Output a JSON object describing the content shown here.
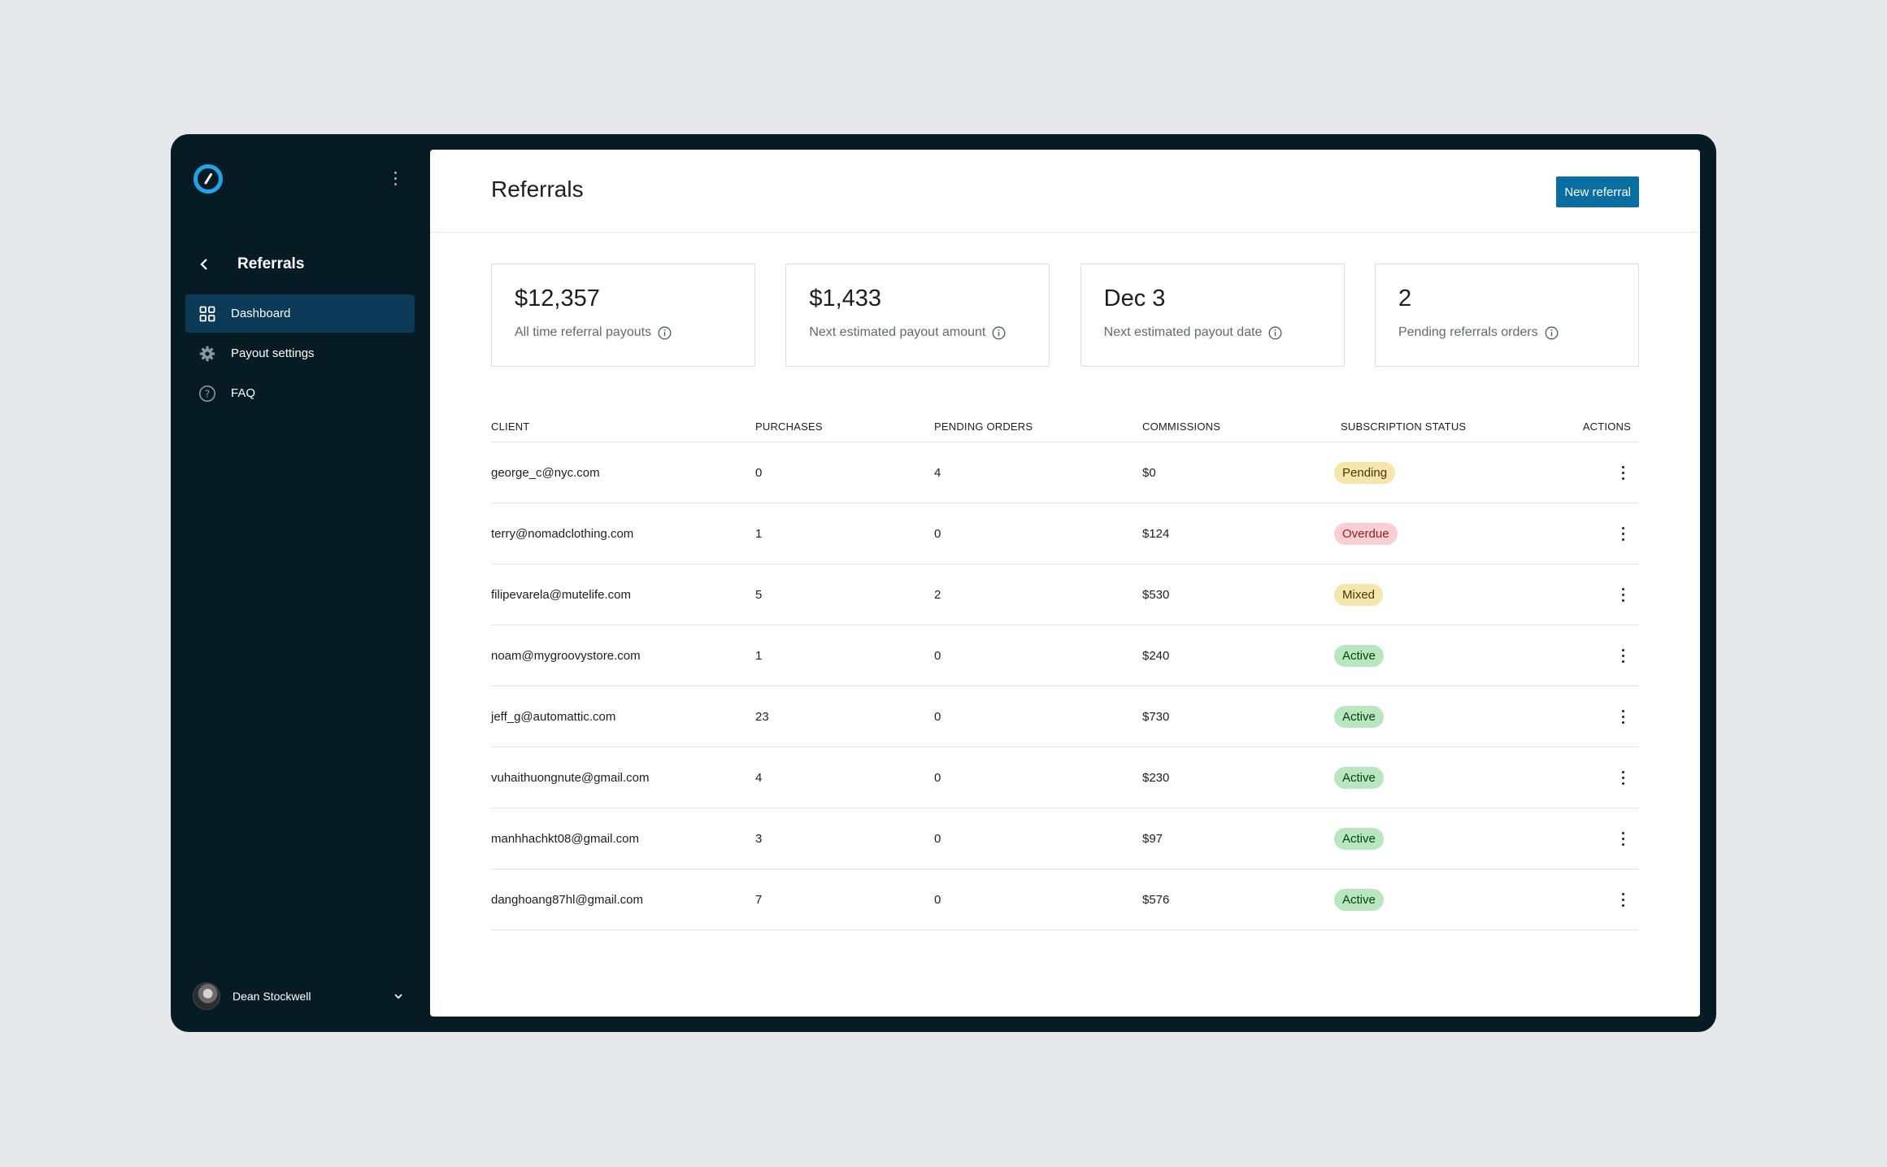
{
  "sidebar": {
    "section_title": "Referrals",
    "items": [
      {
        "label": "Dashboard",
        "icon": "grid-icon",
        "active": true
      },
      {
        "label": "Payout settings",
        "icon": "gear-icon",
        "active": false
      },
      {
        "label": "FAQ",
        "icon": "help-circle-icon",
        "active": false
      }
    ],
    "user": {
      "name": "Dean Stockwell"
    }
  },
  "header": {
    "title": "Referrals",
    "new_button_label": "New referral"
  },
  "cards": [
    {
      "value": "$12,357",
      "label": "All time referral payouts"
    },
    {
      "value": "$1,433",
      "label": "Next estimated payout amount"
    },
    {
      "value": "Dec 3",
      "label": "Next estimated payout date"
    },
    {
      "value": "2",
      "label": "Pending referrals orders"
    }
  ],
  "table": {
    "headers": {
      "client": "CLIENT",
      "purchases": "PURCHASES",
      "pending_orders": "PENDING ORDERS",
      "commissions": "COMMISSIONS",
      "status": "SUBSCRIPTION STATUS",
      "actions": "ACTIONS"
    },
    "rows": [
      {
        "client": "george_c@nyc.com",
        "purchases": "0",
        "pending": "4",
        "commission": "$0",
        "status": "Pending"
      },
      {
        "client": "terry@nomadclothing.com",
        "purchases": "1",
        "pending": "0",
        "commission": "$124",
        "status": "Overdue"
      },
      {
        "client": "filipevarela@mutelife.com",
        "purchases": "5",
        "pending": "2",
        "commission": "$530",
        "status": "Mixed"
      },
      {
        "client": "noam@mygroovystore.com",
        "purchases": "1",
        "pending": "0",
        "commission": "$240",
        "status": "Active"
      },
      {
        "client": "jeff_g@automattic.com",
        "purchases": "23",
        "pending": "0",
        "commission": "$730",
        "status": "Active"
      },
      {
        "client": "vuhaithuongnute@gmail.com",
        "purchases": "4",
        "pending": "0",
        "commission": "$230",
        "status": "Active"
      },
      {
        "client": "manhhachkt08@gmail.com",
        "purchases": "3",
        "pending": "0",
        "commission": "$97",
        "status": "Active"
      },
      {
        "client": "danghoang87hl@gmail.com",
        "purchases": "7",
        "pending": "0",
        "commission": "$576",
        "status": "Active"
      }
    ]
  },
  "status_colors": {
    "Pending": {
      "bg": "#f5e6ab",
      "fg": "#4f3500"
    },
    "Overdue": {
      "bg": "#facfd2",
      "fg": "#8a2424"
    },
    "Mixed": {
      "bg": "#f5e6ab",
      "fg": "#4f3500"
    },
    "Active": {
      "bg": "#b8e6bf",
      "fg": "#00450c"
    }
  },
  "colors": {
    "frame": "#061b24",
    "accent": "#0a6ea3",
    "nav_active": "#0a3a55"
  }
}
